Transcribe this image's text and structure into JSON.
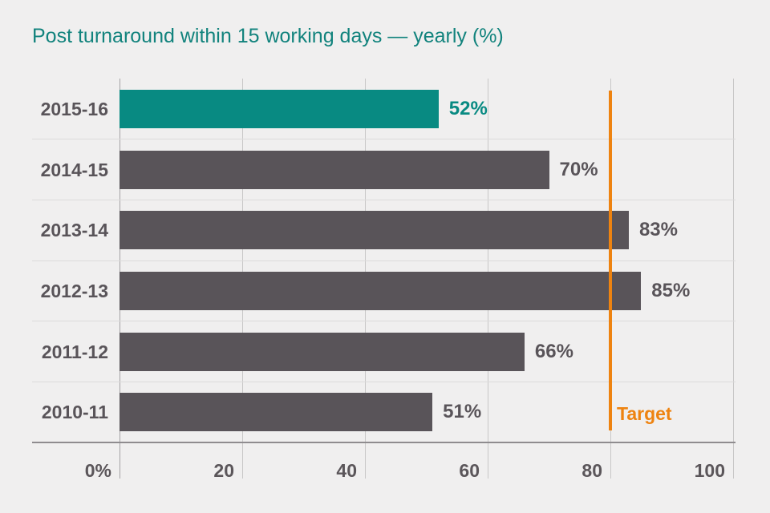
{
  "title": "Post turnaround within 15 working days — yearly (%)",
  "colors": {
    "background": "#f0efef",
    "title_teal": "#12837d",
    "bar_teal": "#088a82",
    "bar_gray": "#595459",
    "text_gray": "#5b565a",
    "orange": "#ee8310"
  },
  "chart_data": {
    "type": "bar",
    "orientation": "horizontal",
    "title": "Post turnaround within 15 working days — yearly (%)",
    "categories": [
      "2015-16",
      "2014-15",
      "2013-14",
      "2012-13",
      "2011-12",
      "2010-11"
    ],
    "values": [
      52,
      70,
      83,
      85,
      66,
      51
    ],
    "value_labels": [
      "52%",
      "70%",
      "83%",
      "85%",
      "66%",
      "51%"
    ],
    "highlight_index": 0,
    "target": {
      "value": 80,
      "label": "Target"
    },
    "x_ticks": [
      {
        "value": 0,
        "label": "0%"
      },
      {
        "value": 20,
        "label": "20"
      },
      {
        "value": 40,
        "label": "40"
      },
      {
        "value": 60,
        "label": "60"
      },
      {
        "value": 80,
        "label": "80"
      },
      {
        "value": 100,
        "label": "100"
      }
    ],
    "xlim": [
      0,
      100
    ],
    "grid": true,
    "legend": false
  }
}
